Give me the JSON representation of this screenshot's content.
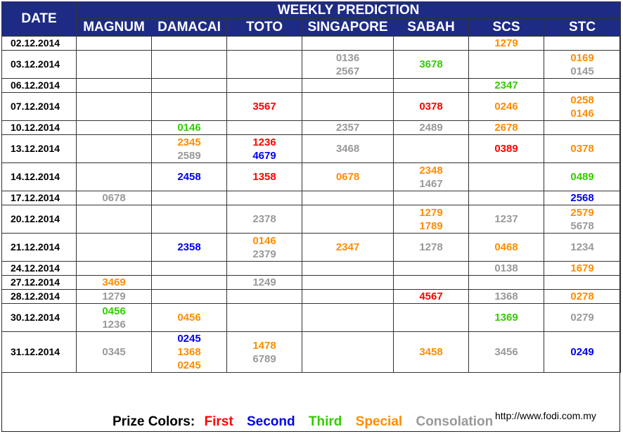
{
  "header": {
    "date_label": "DATE",
    "weekly_label": "WEEKLY PREDICTION",
    "columns": [
      "MAGNUM",
      "DAMACAI",
      "TOTO",
      "SINGAPORE",
      "SABAH",
      "SCS",
      "STC"
    ]
  },
  "colors": {
    "header_bg": "#1e2b85",
    "first": "#ff0000",
    "second": "#0000ee",
    "third": "#33cc00",
    "special": "#ff8c00",
    "consolation": "#999999"
  },
  "rows": [
    {
      "date": "02.12.2014",
      "h": 20,
      "cells": [
        [],
        [],
        [],
        [],
        [],
        [
          [
            "1279",
            "special"
          ]
        ],
        []
      ]
    },
    {
      "date": "03.12.2014",
      "h": 40,
      "cells": [
        [],
        [],
        [],
        [
          [
            "0136",
            "consolation"
          ],
          [
            "2567",
            "consolation"
          ]
        ],
        [
          [
            "3678",
            "third"
          ]
        ],
        [],
        [
          [
            "0169",
            "special"
          ],
          [
            "0145",
            "consolation"
          ]
        ]
      ]
    },
    {
      "date": "06.12.2014",
      "h": 20,
      "cells": [
        [],
        [],
        [],
        [],
        [],
        [
          [
            "2347",
            "third"
          ]
        ],
        []
      ]
    },
    {
      "date": "07.12.2014",
      "h": 40,
      "cells": [
        [],
        [],
        [
          [
            "3567",
            "first"
          ]
        ],
        [],
        [
          [
            "0378",
            "first"
          ]
        ],
        [
          [
            "0246",
            "special"
          ]
        ],
        [
          [
            "0258",
            "special"
          ],
          [
            "0146",
            "special"
          ]
        ]
      ]
    },
    {
      "date": "10.12.2014",
      "h": 20,
      "cells": [
        [],
        [
          [
            "0146",
            "third"
          ]
        ],
        [],
        [
          [
            "2357",
            "consolation"
          ]
        ],
        [
          [
            "2489",
            "consolation"
          ]
        ],
        [
          [
            "2678",
            "special"
          ]
        ],
        []
      ]
    },
    {
      "date": "13.12.2014",
      "h": 40,
      "cells": [
        [],
        [
          [
            "2345",
            "special"
          ],
          [
            "2589",
            "consolation"
          ]
        ],
        [
          [
            "1236",
            "first"
          ],
          [
            "4679",
            "second"
          ]
        ],
        [
          [
            "3468",
            "consolation"
          ]
        ],
        [],
        [
          [
            "0389",
            "first"
          ]
        ],
        [
          [
            "0378",
            "special"
          ]
        ]
      ]
    },
    {
      "date": "14.12.2014",
      "h": 40,
      "cells": [
        [],
        [
          [
            "2458",
            "second"
          ]
        ],
        [
          [
            "1358",
            "first"
          ]
        ],
        [
          [
            "0678",
            "special"
          ]
        ],
        [
          [
            "2348",
            "special"
          ],
          [
            "1467",
            "consolation"
          ]
        ],
        [],
        [
          [
            "0489",
            "third"
          ]
        ]
      ]
    },
    {
      "date": "17.12.2014",
      "h": 20,
      "cells": [
        [
          [
            "0678",
            "consolation"
          ]
        ],
        [],
        [],
        [],
        [],
        [],
        [
          [
            "2568",
            "second"
          ]
        ]
      ]
    },
    {
      "date": "20.12.2014",
      "h": 40,
      "cells": [
        [],
        [],
        [
          [
            "2378",
            "consolation"
          ]
        ],
        [],
        [
          [
            "1279",
            "special"
          ],
          [
            "1789",
            "special"
          ]
        ],
        [
          [
            "1237",
            "consolation"
          ]
        ],
        [
          [
            "2579",
            "special"
          ],
          [
            "5678",
            "consolation"
          ]
        ]
      ]
    },
    {
      "date": "21.12.2014",
      "h": 40,
      "cells": [
        [],
        [
          [
            "2358",
            "second"
          ]
        ],
        [
          [
            "0146",
            "special"
          ],
          [
            "2379",
            "consolation"
          ]
        ],
        [
          [
            "2347",
            "special"
          ]
        ],
        [
          [
            "1278",
            "consolation"
          ]
        ],
        [
          [
            "0468",
            "special"
          ]
        ],
        [
          [
            "1234",
            "consolation"
          ]
        ]
      ]
    },
    {
      "date": "24.12.2014",
      "h": 20,
      "cells": [
        [],
        [],
        [],
        [],
        [],
        [
          [
            "0138",
            "consolation"
          ]
        ],
        [
          [
            "1679",
            "special"
          ]
        ]
      ]
    },
    {
      "date": "27.12.2014",
      "h": 20,
      "cells": [
        [
          [
            "3469",
            "special"
          ]
        ],
        [],
        [
          [
            "1249",
            "consolation"
          ]
        ],
        [],
        [],
        [],
        []
      ]
    },
    {
      "date": "28.12.2014",
      "h": 20,
      "cells": [
        [
          [
            "1279",
            "consolation"
          ]
        ],
        [],
        [],
        [],
        [
          [
            "4567",
            "first"
          ]
        ],
        [
          [
            "1368",
            "consolation"
          ]
        ],
        [
          [
            "0278",
            "special"
          ]
        ]
      ]
    },
    {
      "date": "30.12.2014",
      "h": 40,
      "cells": [
        [
          [
            "0456",
            "third"
          ],
          [
            "1236",
            "consolation"
          ]
        ],
        [
          [
            "0456",
            "special"
          ]
        ],
        [],
        [],
        [],
        [
          [
            "1369",
            "third"
          ]
        ],
        [
          [
            "0279",
            "consolation"
          ]
        ]
      ]
    },
    {
      "date": "31.12.2014",
      "h": 58,
      "cells": [
        [
          [
            "0345",
            "consolation"
          ]
        ],
        [
          [
            "0245",
            "second"
          ],
          [
            "1368",
            "special"
          ],
          [
            "0245",
            "special"
          ]
        ],
        [
          [
            "1478",
            "special"
          ],
          [
            "6789",
            "consolation"
          ]
        ],
        [],
        [
          [
            "3458",
            "special"
          ]
        ],
        [
          [
            "3456",
            "consolation"
          ]
        ],
        [
          [
            "0249",
            "second"
          ]
        ]
      ]
    }
  ],
  "legend": {
    "label": "Prize Colors:",
    "items": [
      {
        "text": "First",
        "cls": "first"
      },
      {
        "text": "Second",
        "cls": "second"
      },
      {
        "text": "Third",
        "cls": "third"
      },
      {
        "text": "Special",
        "cls": "special"
      },
      {
        "text": "Consolation",
        "cls": "consolation"
      }
    ]
  },
  "website": "http://www.fodi.com.my"
}
